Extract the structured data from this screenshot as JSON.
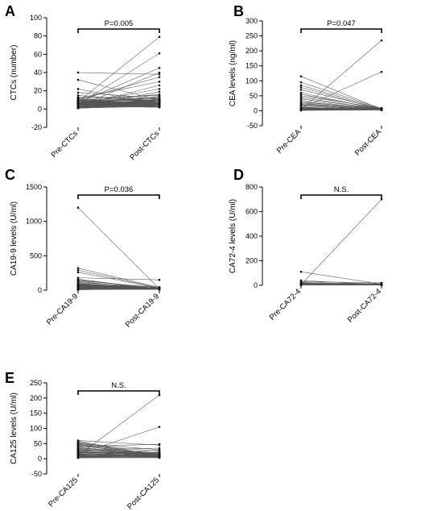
{
  "chart_data": [
    {
      "type": "line",
      "panel": "A",
      "ylabel": "CTCs (number)",
      "categories": [
        "Pre-CTCs",
        "Post-CTCs"
      ],
      "ylim": [
        -20,
        100
      ],
      "yticks": [
        -20,
        0,
        20,
        40,
        60,
        80,
        100
      ],
      "annotation": "P=0.005",
      "pairs": [
        [
          8,
          79
        ],
        [
          5,
          61
        ],
        [
          7,
          45
        ],
        [
          3,
          40
        ],
        [
          10,
          35
        ],
        [
          12,
          30
        ],
        [
          4,
          26
        ],
        [
          6,
          22
        ],
        [
          2,
          19
        ],
        [
          9,
          16
        ],
        [
          32,
          10
        ],
        [
          40,
          38
        ],
        [
          15,
          8
        ],
        [
          18,
          12
        ],
        [
          22,
          5
        ],
        [
          6,
          14
        ],
        [
          11,
          10
        ],
        [
          4,
          8
        ],
        [
          7,
          12
        ],
        [
          3,
          5
        ],
        [
          9,
          7
        ],
        [
          5,
          9
        ],
        [
          2,
          4
        ],
        [
          13,
          11
        ],
        [
          6,
          6
        ],
        [
          8,
          3
        ],
        [
          1,
          7
        ],
        [
          10,
          13
        ],
        [
          4,
          2
        ],
        [
          7,
          9
        ],
        [
          3,
          6
        ],
        [
          5,
          3
        ],
        [
          12,
          15
        ],
        [
          2,
          10
        ],
        [
          6,
          4
        ],
        [
          8,
          8
        ],
        [
          11,
          6
        ],
        [
          4,
          11
        ],
        [
          3,
          9
        ],
        [
          9,
          5
        ],
        [
          1,
          3
        ],
        [
          5,
          6
        ],
        [
          7,
          4
        ],
        [
          6,
          10
        ],
        [
          2,
          7
        ],
        [
          10,
          9
        ],
        [
          4,
          5
        ],
        [
          8,
          12
        ],
        [
          3,
          2
        ],
        [
          5,
          8
        ],
        [
          7,
          6
        ],
        [
          9,
          10
        ],
        [
          2,
          5
        ],
        [
          6,
          3
        ],
        [
          4,
          7
        ],
        [
          1,
          9
        ],
        [
          8,
          5
        ],
        [
          3,
          11
        ],
        [
          5,
          4
        ],
        [
          7,
          8
        ],
        [
          10,
          6
        ],
        [
          2,
          3
        ],
        [
          6,
          7
        ],
        [
          4,
          9
        ],
        [
          9,
          4
        ],
        [
          3,
          7
        ],
        [
          5,
          10
        ],
        [
          8,
          6
        ],
        [
          1,
          4
        ],
        [
          7,
          5
        ]
      ]
    },
    {
      "type": "line",
      "panel": "B",
      "ylabel": "CEA levels (ng/ml)",
      "categories": [
        "Pre-CEA",
        "Post-CEA"
      ],
      "ylim": [
        -50,
        300
      ],
      "yticks": [
        -50,
        0,
        50,
        100,
        150,
        200,
        250,
        300
      ],
      "annotation": "P=0.047",
      "pairs": [
        [
          5,
          235
        ],
        [
          8,
          130
        ],
        [
          115,
          5
        ],
        [
          95,
          8
        ],
        [
          85,
          6
        ],
        [
          78,
          4
        ],
        [
          70,
          7
        ],
        [
          60,
          3
        ],
        [
          55,
          5
        ],
        [
          50,
          9
        ],
        [
          45,
          4
        ],
        [
          40,
          6
        ],
        [
          35,
          3
        ],
        [
          30,
          5
        ],
        [
          28,
          8
        ],
        [
          25,
          4
        ],
        [
          22,
          6
        ],
        [
          20,
          3
        ],
        [
          18,
          7
        ],
        [
          15,
          5
        ],
        [
          12,
          4
        ],
        [
          10,
          6
        ],
        [
          9,
          3
        ],
        [
          8,
          5
        ],
        [
          7,
          4
        ],
        [
          6,
          7
        ],
        [
          5,
          3
        ],
        [
          4,
          5
        ],
        [
          3,
          4
        ],
        [
          2,
          6
        ],
        [
          6,
          8
        ],
        [
          4,
          3
        ],
        [
          7,
          5
        ],
        [
          3,
          7
        ],
        [
          5,
          6
        ],
        [
          8,
          4
        ],
        [
          2,
          3
        ],
        [
          6,
          5
        ],
        [
          4,
          7
        ],
        [
          9,
          5
        ],
        [
          3,
          3
        ],
        [
          5,
          8
        ],
        [
          7,
          4
        ],
        [
          2,
          6
        ],
        [
          4,
          4
        ],
        [
          6,
          3
        ],
        [
          8,
          7
        ],
        [
          3,
          5
        ],
        [
          5,
          4
        ],
        [
          1,
          3
        ]
      ]
    },
    {
      "type": "line",
      "panel": "C",
      "ylabel": "CA19-9 levels (U/ml)",
      "categories": [
        "Pre-CA19-9",
        "Post-CA19-9"
      ],
      "ylim": [
        0,
        1500
      ],
      "yticks": [
        0,
        500,
        1000,
        1500
      ],
      "annotation": "P=0.036",
      "pairs": [
        [
          1200,
          20
        ],
        [
          320,
          40
        ],
        [
          290,
          30
        ],
        [
          260,
          25
        ],
        [
          180,
          150
        ],
        [
          160,
          15
        ],
        [
          150,
          20
        ],
        [
          140,
          35
        ],
        [
          130,
          10
        ],
        [
          120,
          25
        ],
        [
          110,
          40
        ],
        [
          100,
          15
        ],
        [
          95,
          30
        ],
        [
          90,
          10
        ],
        [
          85,
          20
        ],
        [
          80,
          45
        ],
        [
          75,
          15
        ],
        [
          70,
          25
        ],
        [
          65,
          10
        ],
        [
          60,
          30
        ],
        [
          55,
          20
        ],
        [
          50,
          15
        ],
        [
          45,
          35
        ],
        [
          40,
          10
        ],
        [
          35,
          25
        ],
        [
          30,
          20
        ],
        [
          25,
          15
        ],
        [
          20,
          30
        ],
        [
          15,
          10
        ],
        [
          10,
          20
        ],
        [
          8,
          15
        ],
        [
          5,
          25
        ],
        [
          12,
          10
        ],
        [
          18,
          20
        ],
        [
          22,
          30
        ],
        [
          28,
          15
        ],
        [
          32,
          20
        ],
        [
          38,
          10
        ],
        [
          42,
          25
        ],
        [
          48,
          15
        ],
        [
          52,
          30
        ],
        [
          58,
          10
        ],
        [
          62,
          20
        ],
        [
          68,
          15
        ],
        [
          72,
          25
        ],
        [
          78,
          10
        ],
        [
          82,
          20
        ],
        [
          88,
          15
        ],
        [
          92,
          25
        ],
        [
          98,
          10
        ]
      ]
    },
    {
      "type": "line",
      "panel": "D",
      "ylabel": "CA72-4 levels (U/ml)",
      "categories": [
        "Pre-CA72-4",
        "Post-CA72-4"
      ],
      "ylim": [
        0,
        800
      ],
      "yticks": [
        0,
        200,
        400,
        600,
        800
      ],
      "annotation": "N.S.",
      "pairs": [
        [
          5,
          700
        ],
        [
          110,
          10
        ],
        [
          40,
          5
        ],
        [
          30,
          20
        ],
        [
          25,
          8
        ],
        [
          20,
          15
        ],
        [
          18,
          4
        ],
        [
          15,
          10
        ],
        [
          12,
          6
        ],
        [
          10,
          12
        ],
        [
          9,
          3
        ],
        [
          8,
          7
        ],
        [
          7,
          5
        ],
        [
          6,
          9
        ],
        [
          5,
          2
        ],
        [
          4,
          6
        ],
        [
          3,
          4
        ],
        [
          2,
          8
        ],
        [
          6,
          3
        ],
        [
          8,
          5
        ],
        [
          4,
          7
        ],
        [
          3,
          2
        ],
        [
          5,
          6
        ],
        [
          7,
          4
        ],
        [
          2,
          5
        ],
        [
          9,
          3
        ],
        [
          3,
          6
        ],
        [
          6,
          4
        ],
        [
          4,
          2
        ],
        [
          5,
          8
        ]
      ]
    },
    {
      "type": "line",
      "panel": "E",
      "ylabel": "CA125 levels (U/ml)",
      "categories": [
        "Pre-CA125",
        "Post-CA125"
      ],
      "ylim": [
        -50,
        250
      ],
      "yticks": [
        -50,
        0,
        50,
        100,
        150,
        200,
        250
      ],
      "annotation": "N.S.",
      "pairs": [
        [
          10,
          210
        ],
        [
          15,
          105
        ],
        [
          60,
          45
        ],
        [
          50,
          30
        ],
        [
          45,
          25
        ],
        [
          40,
          48
        ],
        [
          35,
          20
        ],
        [
          30,
          15
        ],
        [
          28,
          35
        ],
        [
          25,
          10
        ],
        [
          22,
          18
        ],
        [
          20,
          12
        ],
        [
          18,
          28
        ],
        [
          15,
          8
        ],
        [
          12,
          22
        ],
        [
          10,
          15
        ],
        [
          8,
          10
        ],
        [
          6,
          5
        ],
        [
          5,
          18
        ],
        [
          4,
          12
        ],
        [
          3,
          6
        ],
        [
          7,
          9
        ],
        [
          9,
          14
        ],
        [
          11,
          7
        ],
        [
          13,
          20
        ],
        [
          16,
          11
        ],
        [
          19,
          6
        ],
        [
          21,
          16
        ],
        [
          24,
          9
        ],
        [
          27,
          13
        ],
        [
          29,
          5
        ],
        [
          32,
          17
        ],
        [
          34,
          8
        ],
        [
          37,
          12
        ],
        [
          39,
          6
        ],
        [
          42,
          15
        ],
        [
          44,
          10
        ],
        [
          47,
          8
        ],
        [
          49,
          14
        ],
        [
          52,
          6
        ],
        [
          55,
          11
        ],
        [
          58,
          9
        ],
        [
          5,
          4
        ],
        [
          8,
          7
        ],
        [
          12,
          5
        ],
        [
          6,
          8
        ],
        [
          3,
          3
        ],
        [
          9,
          6
        ],
        [
          14,
          9
        ],
        [
          17,
          4
        ]
      ]
    }
  ]
}
